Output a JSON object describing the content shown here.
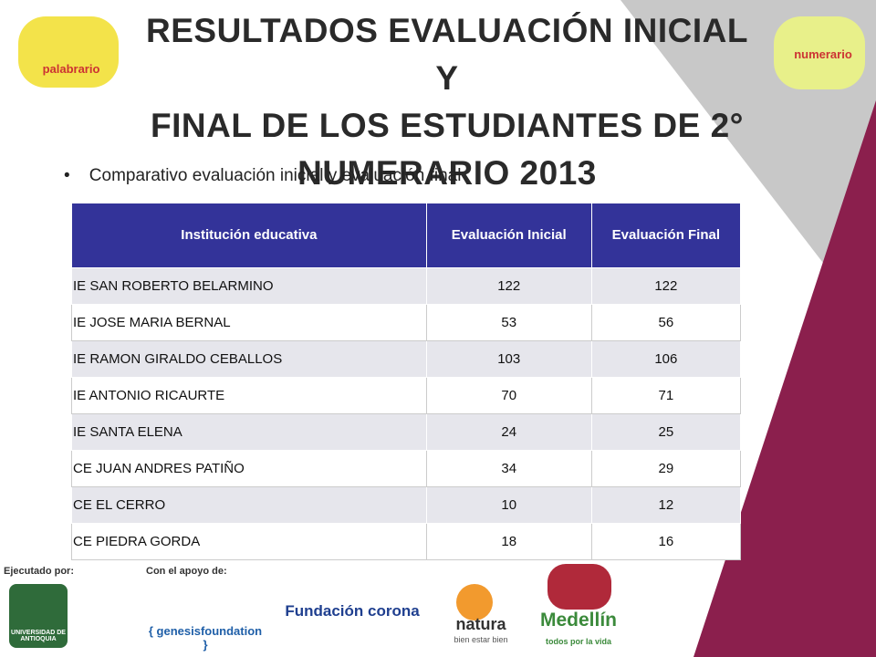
{
  "header": {
    "title_lines": [
      "RESULTADOS EVALUACIÓN INICIAL Y",
      "FINAL DE LOS ESTUDIANTES  DE 2°",
      "NUMERARIO 2013"
    ],
    "logo_left": "palabrario",
    "logo_right": "numerario"
  },
  "bullet": "Comparativo evaluación inicial y evaluación final",
  "table": {
    "columns": [
      "Institución educativa",
      "Evaluación Inicial",
      "Evaluación Final"
    ],
    "rows": [
      [
        "IE SAN ROBERTO BELARMINO",
        122,
        122
      ],
      [
        "IE JOSE MARIA BERNAL",
        53,
        56
      ],
      [
        " IE RAMON GIRALDO CEBALLOS",
        103,
        106
      ],
      [
        " IE ANTONIO RICAURTE",
        70,
        71
      ],
      [
        " IE SANTA ELENA",
        24,
        25
      ],
      [
        "CE JUAN ANDRES PATIÑO",
        34,
        29
      ],
      [
        " CE EL CERRO",
        10,
        12
      ],
      [
        " CE PIEDRA GORDA",
        18,
        16
      ]
    ]
  },
  "footer": {
    "executed_by": "Ejecutado por:",
    "supported_by": "Con el apoyo de:",
    "university": "UNIVERSIDAD DE ANTIOQUIA",
    "genesis": "{ genesisfoundation }",
    "corona": "Fundación corona",
    "natura": "natura",
    "natura_tag": "bien estar bien",
    "medellin": "Medellín",
    "medellin_tag": "todos por la vida"
  }
}
